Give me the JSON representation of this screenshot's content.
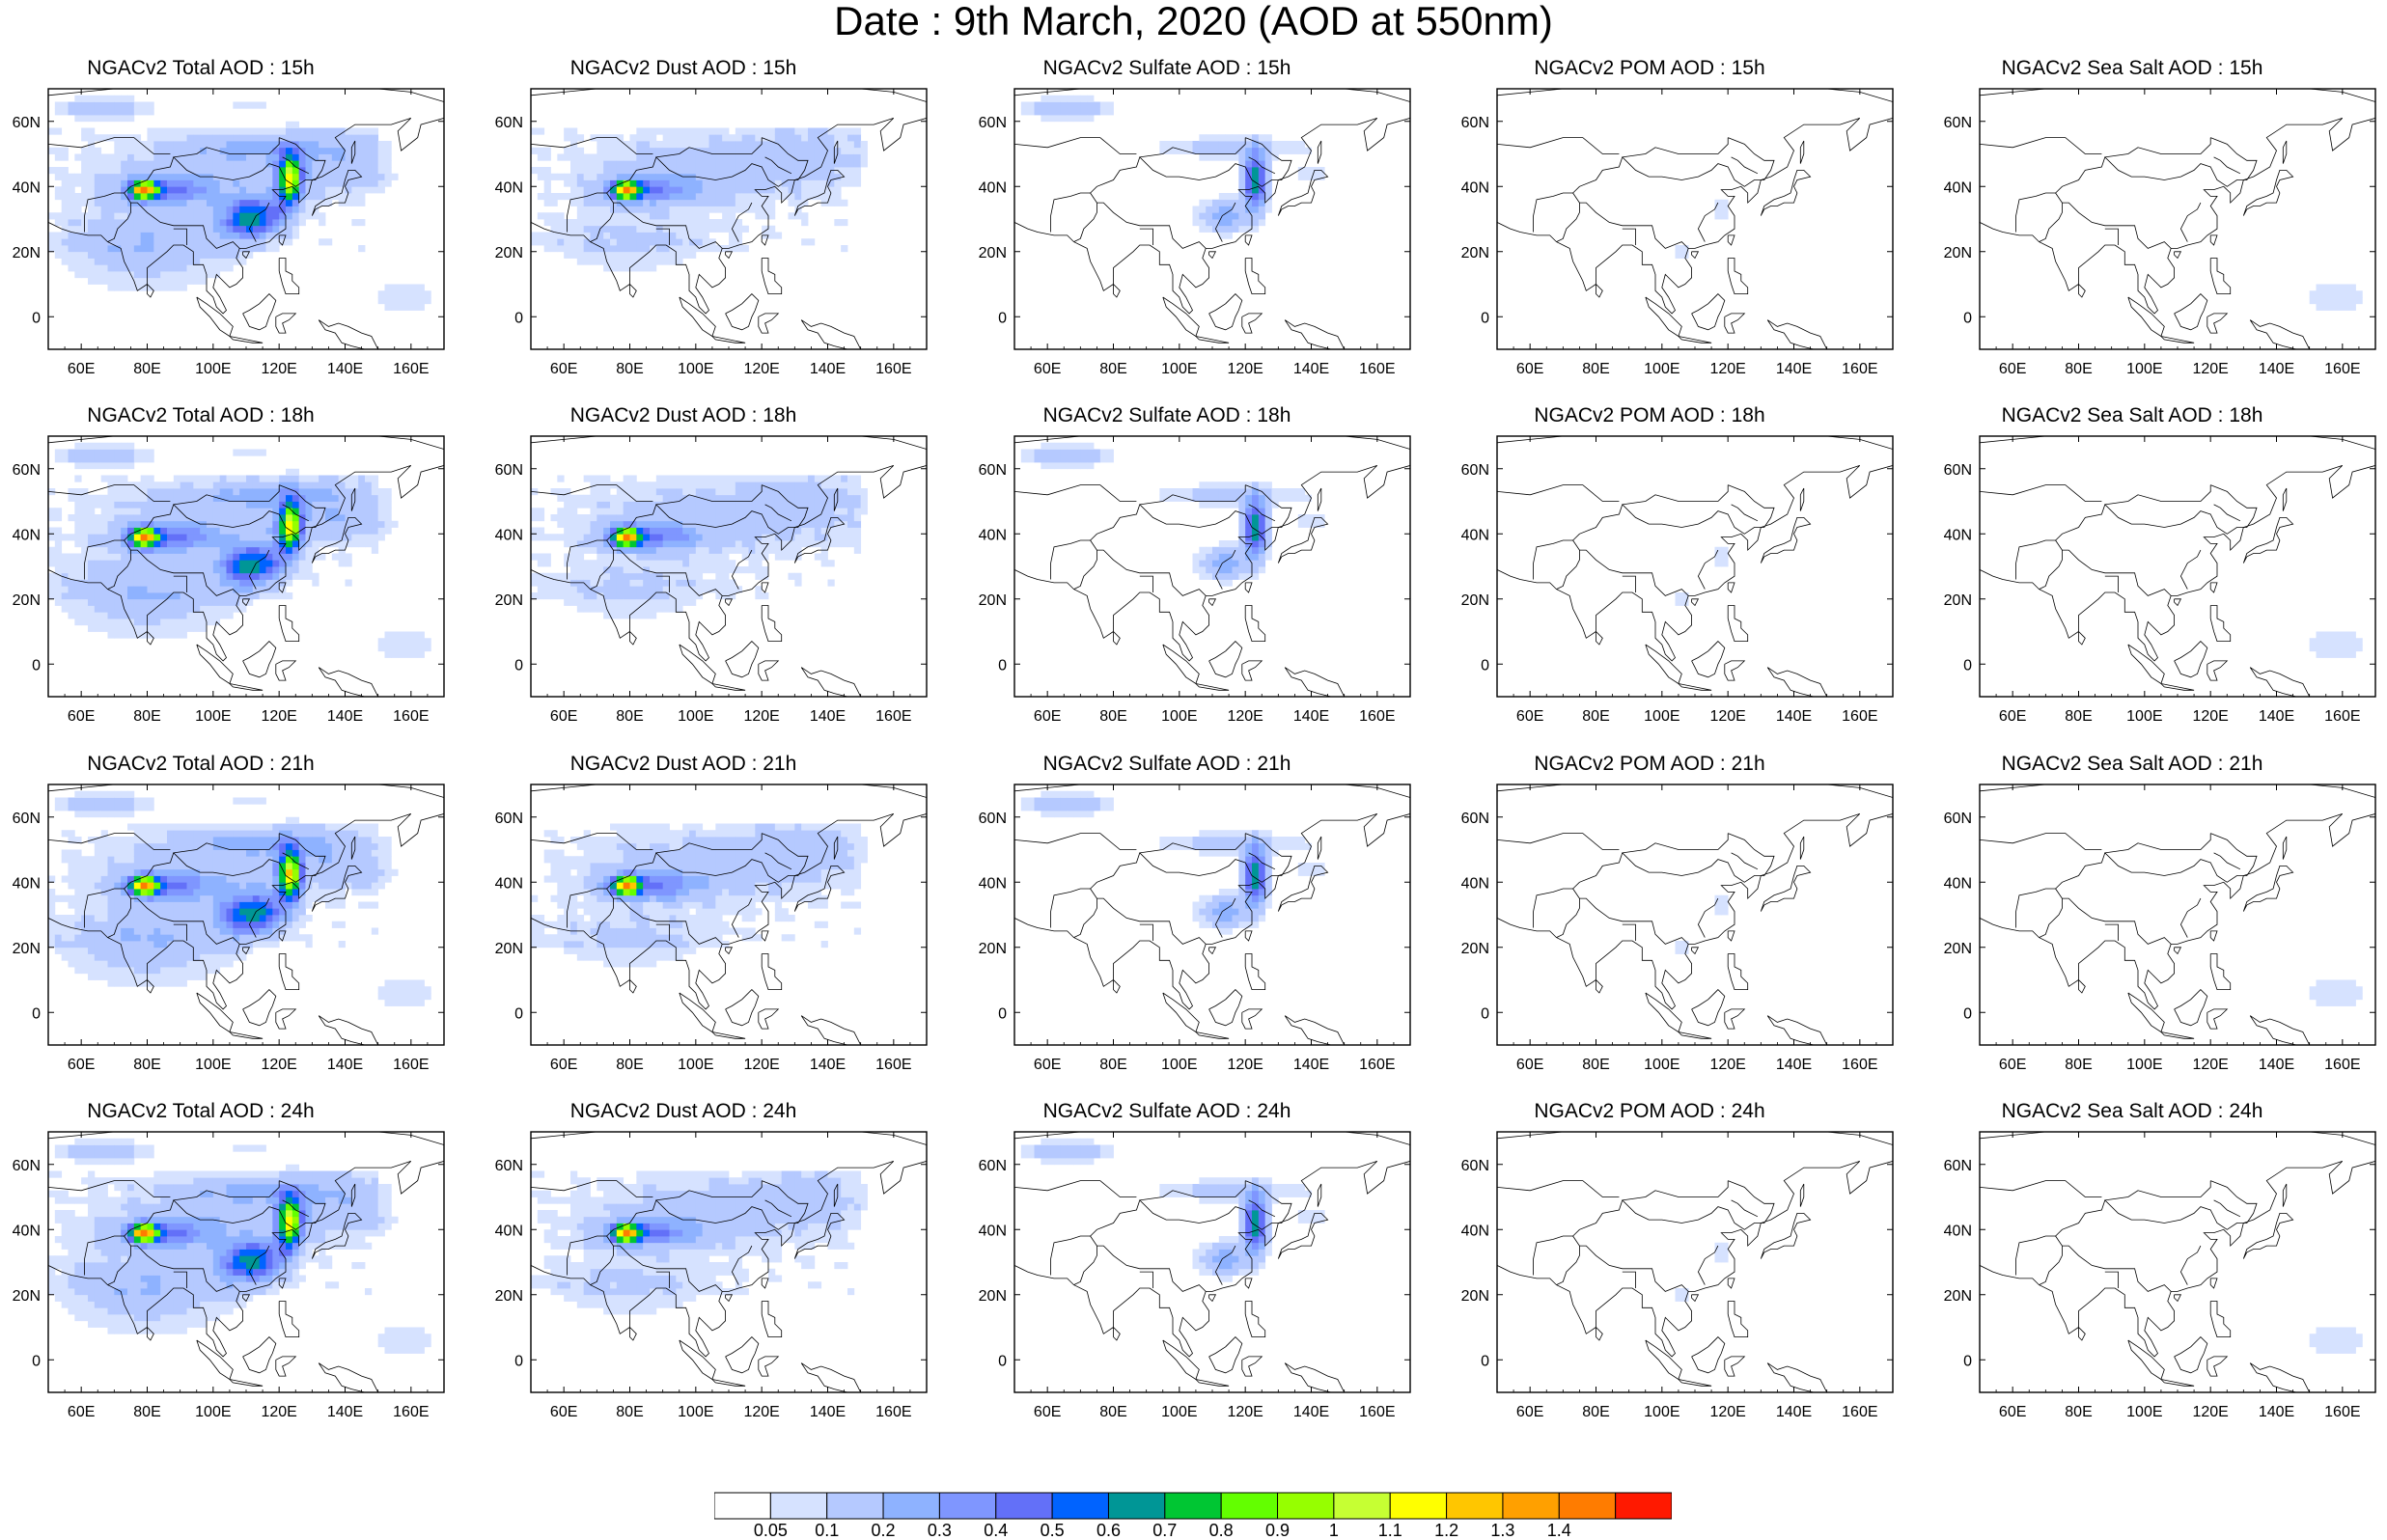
{
  "title": "Date : 9th March, 2020 (AOD at 550nm)",
  "map": {
    "lon_range": [
      50,
      170
    ],
    "lat_range": [
      -10,
      70
    ],
    "lon_ticks": [
      60,
      80,
      100,
      120,
      140,
      160
    ],
    "lon_tick_labels": [
      "60E",
      "80E",
      "100E",
      "120E",
      "140E",
      "160E"
    ],
    "lat_ticks": [
      0,
      20,
      40,
      60
    ],
    "lat_tick_labels": [
      "0",
      "20N",
      "40N",
      "60N"
    ]
  },
  "panels": [
    {
      "title": "NGACv2 Total AOD : 15h",
      "species": "total",
      "hour": 15
    },
    {
      "title": "NGACv2 Dust AOD : 15h",
      "species": "dust",
      "hour": 15
    },
    {
      "title": "NGACv2 Sulfate AOD : 15h",
      "species": "sulfate",
      "hour": 15
    },
    {
      "title": "NGACv2 POM AOD : 15h",
      "species": "pom",
      "hour": 15
    },
    {
      "title": "NGACv2 Sea Salt AOD : 15h",
      "species": "seasalt",
      "hour": 15
    },
    {
      "title": "NGACv2 Total AOD : 18h",
      "species": "total",
      "hour": 18
    },
    {
      "title": "NGACv2 Dust AOD : 18h",
      "species": "dust",
      "hour": 18
    },
    {
      "title": "NGACv2 Sulfate AOD : 18h",
      "species": "sulfate",
      "hour": 18
    },
    {
      "title": "NGACv2 POM AOD : 18h",
      "species": "pom",
      "hour": 18
    },
    {
      "title": "NGACv2 Sea Salt AOD : 18h",
      "species": "seasalt",
      "hour": 18
    },
    {
      "title": "NGACv2 Total AOD : 21h",
      "species": "total",
      "hour": 21
    },
    {
      "title": "NGACv2 Dust AOD : 21h",
      "species": "dust",
      "hour": 21
    },
    {
      "title": "NGACv2 Sulfate AOD : 21h",
      "species": "sulfate",
      "hour": 21
    },
    {
      "title": "NGACv2 POM AOD : 21h",
      "species": "pom",
      "hour": 21
    },
    {
      "title": "NGACv2 Sea Salt AOD : 21h",
      "species": "seasalt",
      "hour": 21
    },
    {
      "title": "NGACv2 Total AOD : 24h",
      "species": "total",
      "hour": 24
    },
    {
      "title": "NGACv2 Dust AOD : 24h",
      "species": "dust",
      "hour": 24
    },
    {
      "title": "NGACv2 Sulfate AOD : 24h",
      "species": "sulfate",
      "hour": 24
    },
    {
      "title": "NGACv2 POM AOD : 24h",
      "species": "pom",
      "hour": 24
    },
    {
      "title": "NGACv2 Sea Salt  AOD : 24h",
      "species": "seasalt",
      "hour": 24
    }
  ],
  "colorbar": {
    "colors": [
      "#ffffff",
      "#d6e2ff",
      "#b5c9ff",
      "#8eb2ff",
      "#7f96ff",
      "#6370f8",
      "#0063ff",
      "#009696",
      "#00c633",
      "#63ff00",
      "#96ff00",
      "#c6ff33",
      "#ffff00",
      "#ffc600",
      "#ffa000",
      "#ff7c00",
      "#ff1900"
    ],
    "labels": [
      "0.05",
      "0.1",
      "0.2",
      "0.3",
      "0.4",
      "0.5",
      "0.6",
      "0.7",
      "0.8",
      "0.9",
      "1",
      "1.1",
      "1.2",
      "1.3",
      "1.4"
    ]
  }
}
